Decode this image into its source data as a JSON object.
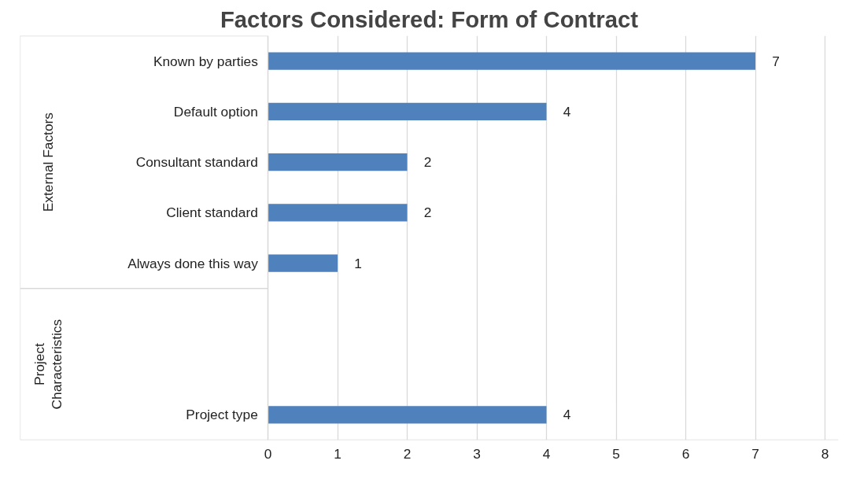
{
  "chart_data": {
    "type": "bar",
    "orientation": "horizontal",
    "title": "Factors Considered: Form of Contract",
    "categories": [
      "Known by parties",
      "Default option",
      "Consultant standard",
      "Client standard",
      "Always done this way",
      null,
      null,
      "Project type"
    ],
    "values": [
      7,
      4,
      2,
      2,
      1,
      null,
      null,
      4
    ],
    "color": "#4f81bd",
    "xlim": [
      0,
      8
    ],
    "xticks": [
      0,
      1,
      2,
      3,
      4,
      5,
      6,
      7,
      8
    ],
    "grid": "x",
    "data_labels": true,
    "annotations": [
      "External Factors",
      "Project Characteristics"
    ]
  }
}
